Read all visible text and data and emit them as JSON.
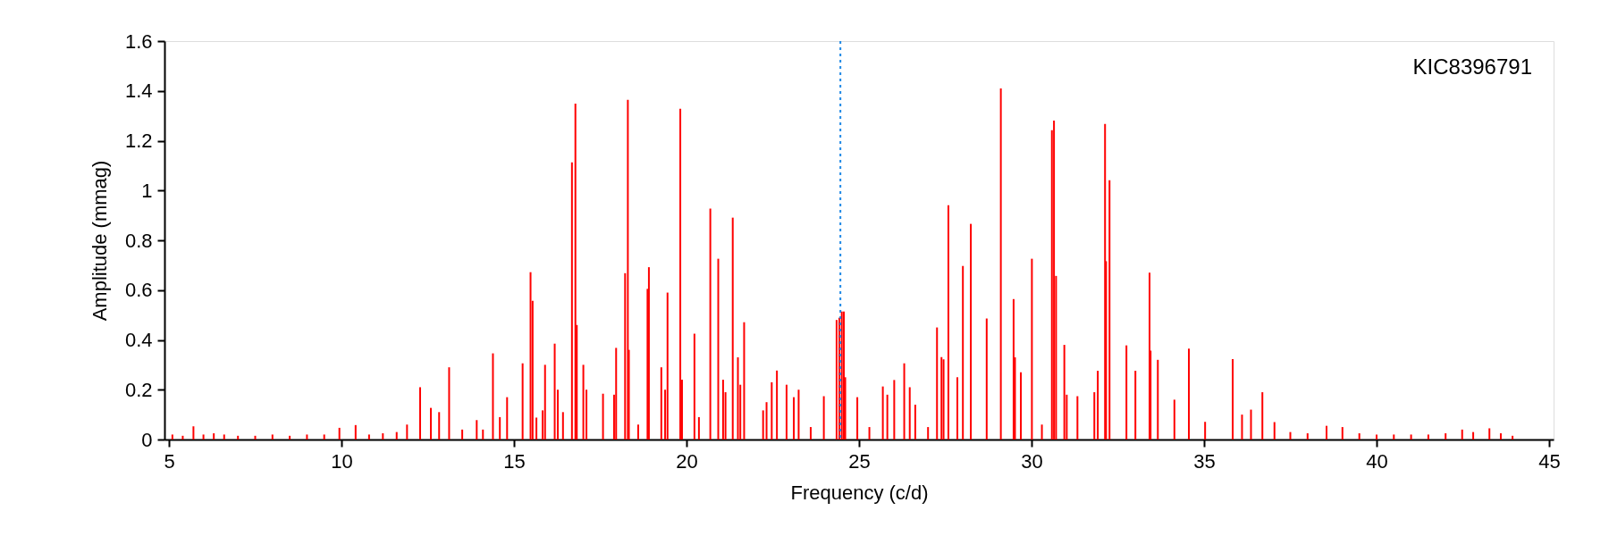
{
  "chart_data": {
    "type": "bar",
    "xlabel": "Frequency (c/d)",
    "ylabel": "Amplitude (mmag)",
    "annotations": [
      "KIC8396791"
    ],
    "xlim": [
      5,
      45
    ],
    "xticks": [
      5,
      10,
      15,
      20,
      25,
      30,
      35,
      40,
      45
    ],
    "ylim": [
      0,
      1.6
    ],
    "yticks": [
      0,
      0.2,
      0.4,
      0.6,
      0.8,
      1,
      1.2,
      1.4,
      1.6
    ],
    "ref_lines": [
      {
        "axis": "x",
        "value": 24.46,
        "color": "#1e88e5",
        "line_style": "dotted"
      }
    ],
    "x": [
      5.1,
      5.4,
      5.71,
      6.0,
      6.3,
      6.6,
      7.0,
      7.5,
      8.0,
      8.5,
      9.0,
      9.5,
      9.94,
      10.41,
      10.8,
      11.2,
      11.6,
      11.9,
      12.28,
      12.59,
      12.83,
      13.12,
      13.5,
      13.92,
      14.1,
      14.39,
      14.59,
      14.8,
      15.25,
      15.48,
      15.54,
      15.65,
      15.83,
      15.9,
      16.18,
      16.27,
      16.42,
      16.68,
      16.78,
      16.82,
      17.01,
      17.1,
      17.58,
      17.9,
      17.96,
      18.22,
      18.3,
      18.33,
      18.6,
      18.87,
      18.91,
      19.27,
      19.38,
      19.45,
      19.82,
      19.87,
      20.23,
      20.36,
      20.69,
      20.92,
      21.06,
      21.13,
      21.34,
      21.49,
      21.56,
      21.67,
      22.22,
      22.32,
      22.47,
      22.62,
      22.9,
      23.11,
      23.25,
      23.6,
      23.98,
      24.35,
      24.43,
      24.5,
      24.56,
      24.6,
      24.95,
      25.3,
      25.69,
      25.82,
      26.02,
      26.31,
      26.47,
      26.63,
      27.0,
      27.26,
      27.39,
      27.45,
      27.59,
      27.85,
      28.01,
      28.24,
      28.7,
      29.11,
      29.48,
      29.52,
      29.69,
      30.01,
      30.3,
      30.59,
      30.65,
      30.71,
      30.95,
      31.02,
      31.33,
      31.82,
      31.92,
      32.13,
      32.16,
      32.26,
      32.75,
      33.01,
      33.42,
      33.45,
      33.66,
      34.14,
      34.56,
      35.03,
      35.83,
      36.1,
      36.36,
      36.69,
      37.04,
      37.5,
      38.0,
      38.55,
      39.01,
      39.5,
      40.0,
      40.5,
      41.0,
      41.5,
      42.0,
      42.48,
      42.8,
      43.27,
      43.6,
      43.94
    ],
    "series": [
      {
        "color": "#ff0000",
        "values": [
          0.02,
          0.015,
          0.053,
          0.02,
          0.025,
          0.02,
          0.015,
          0.015,
          0.02,
          0.015,
          0.02,
          0.02,
          0.047,
          0.058,
          0.02,
          0.025,
          0.03,
          0.06,
          0.21,
          0.127,
          0.11,
          0.29,
          0.04,
          0.078,
          0.04,
          0.346,
          0.09,
          0.17,
          0.306,
          0.672,
          0.557,
          0.088,
          0.117,
          0.3,
          0.385,
          0.2,
          0.11,
          1.113,
          1.349,
          0.46,
          0.3,
          0.2,
          0.184,
          0.18,
          0.368,
          0.668,
          1.364,
          0.36,
          0.06,
          0.605,
          0.692,
          0.29,
          0.2,
          0.59,
          1.328,
          0.24,
          0.425,
          0.09,
          0.927,
          0.726,
          0.24,
          0.19,
          0.891,
          0.33,
          0.22,
          0.471,
          0.117,
          0.15,
          0.23,
          0.277,
          0.22,
          0.17,
          0.2,
          0.05,
          0.174,
          0.48,
          0.489,
          0.514,
          0.514,
          0.25,
          0.17,
          0.05,
          0.213,
          0.18,
          0.239,
          0.306,
          0.21,
          0.14,
          0.05,
          0.45,
          0.331,
          0.322,
          0.941,
          0.25,
          0.697,
          0.866,
          0.486,
          1.41,
          0.564,
          0.33,
          0.27,
          0.726,
          0.06,
          1.242,
          1.281,
          0.657,
          0.38,
          0.18,
          0.174,
          0.19,
          0.276,
          1.267,
          0.716,
          1.041,
          0.378,
          0.276,
          0.67,
          0.357,
          0.32,
          0.16,
          0.365,
          0.071,
          0.323,
          0.1,
          0.12,
          0.19,
          0.07,
          0.03,
          0.025,
          0.055,
          0.05,
          0.025,
          0.02,
          0.02,
          0.02,
          0.02,
          0.025,
          0.04,
          0.03,
          0.045,
          0.025,
          0.015
        ]
      }
    ]
  }
}
